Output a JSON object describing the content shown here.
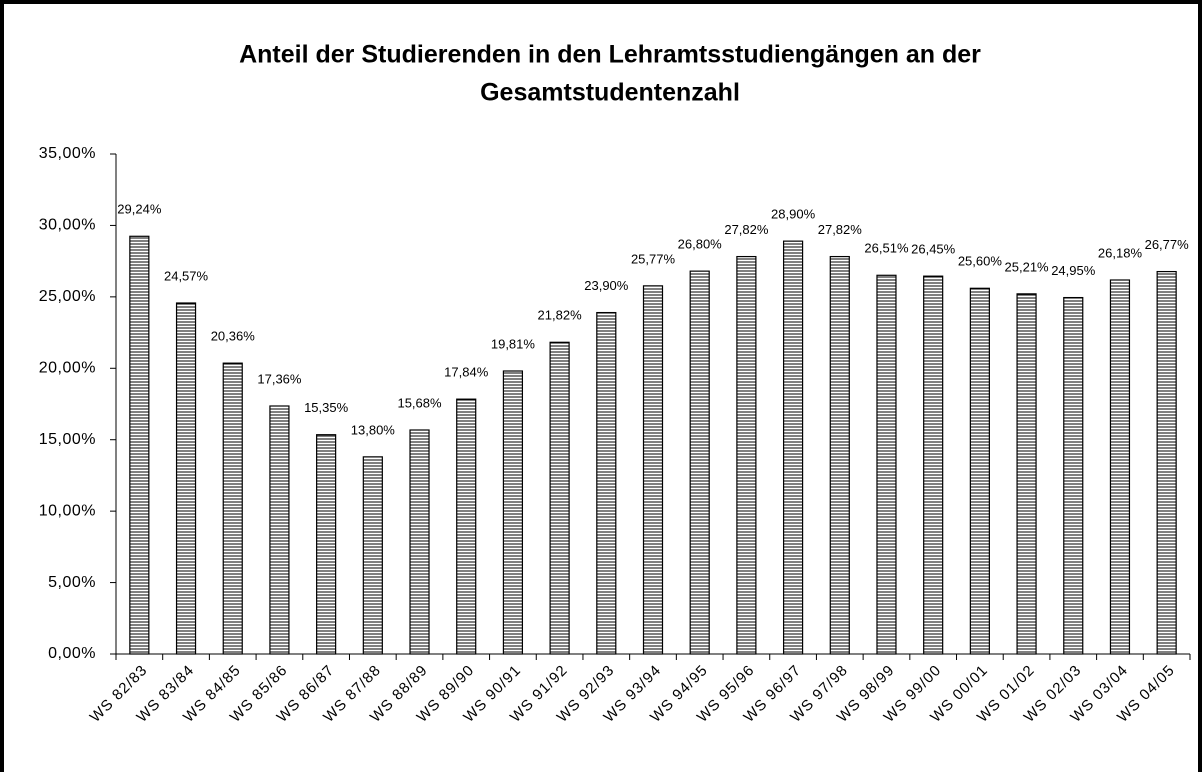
{
  "chart_data": {
    "type": "bar",
    "title": [
      "Anteil der Studierenden in den Lehramtsstudiengängen an der",
      "Gesamtstudentenzahl"
    ],
    "categories": [
      "WS 82/83",
      "WS 83/84",
      "WS 84/85",
      "WS 85/86",
      "WS 86/87",
      "WS 87/88",
      "WS 88/89",
      "WS 89/90",
      "WS 90/91",
      "WS 91/92",
      "WS 92/93",
      "WS 93/94",
      "WS 94/95",
      "WS 95/96",
      "WS 96/97",
      "WS 97/98",
      "WS 98/99",
      "WS 99/00",
      "WS 00/01",
      "WS 01/02",
      "WS 02/03",
      "WS 03/04",
      "WS 04/05"
    ],
    "values": [
      29.24,
      24.57,
      20.36,
      17.36,
      15.35,
      13.8,
      15.68,
      17.84,
      19.81,
      21.82,
      23.9,
      25.77,
      26.8,
      27.82,
      28.9,
      27.82,
      26.51,
      26.45,
      25.6,
      25.21,
      24.95,
      26.18,
      26.77
    ],
    "value_labels": [
      "29,24%",
      "24,57%",
      "20,36%",
      "17,36%",
      "15,35%",
      "13,80%",
      "15,68%",
      "17,84%",
      "19,81%",
      "21,82%",
      "23,90%",
      "25,77%",
      "26,80%",
      "27,82%",
      "28,90%",
      "27,82%",
      "26,51%",
      "26,45%",
      "25,60%",
      "25,21%",
      "24,95%",
      "26,18%",
      "26,77%"
    ],
    "color": "#000000",
    "ylim": [
      0,
      35
    ],
    "yticks": [
      {
        "value": 0,
        "label": "0,00%"
      },
      {
        "value": 5,
        "label": "5,00%"
      },
      {
        "value": 10,
        "label": "10,00%"
      },
      {
        "value": 15,
        "label": "15,00%"
      },
      {
        "value": 20,
        "label": "20,00%"
      },
      {
        "value": 25,
        "label": "25,00%"
      },
      {
        "value": 30,
        "label": "30,00%"
      },
      {
        "value": 35,
        "label": "35,00%"
      }
    ],
    "grid": false
  }
}
